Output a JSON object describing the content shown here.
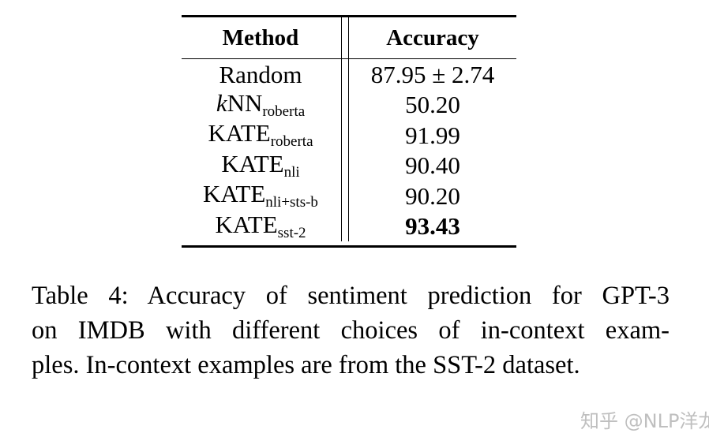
{
  "table": {
    "headers": {
      "method": "Method",
      "accuracy": "Accuracy"
    },
    "rows": [
      {
        "method": {
          "prefix": "",
          "italic": "",
          "base": "Random",
          "sub": ""
        },
        "accuracy": "87.95 ± 2.74",
        "bold": false
      },
      {
        "method": {
          "prefix": "",
          "italic": "k",
          "base": "NN",
          "sub": "roberta"
        },
        "accuracy": "50.20",
        "bold": false
      },
      {
        "method": {
          "prefix": "",
          "italic": "",
          "base": "KATE",
          "sub": "roberta"
        },
        "accuracy": "91.99",
        "bold": false
      },
      {
        "method": {
          "prefix": "",
          "italic": "",
          "base": "KATE",
          "sub": "nli"
        },
        "accuracy": "90.40",
        "bold": false
      },
      {
        "method": {
          "prefix": "",
          "italic": "",
          "base": "KATE",
          "sub": "nli+sts-b"
        },
        "accuracy": "90.20",
        "bold": false
      },
      {
        "method": {
          "prefix": "",
          "italic": "",
          "base": "KATE",
          "sub": "sst-2"
        },
        "accuracy": "93.43",
        "bold": true
      }
    ]
  },
  "caption": {
    "lines": [
      "Table 4: Accuracy of sentiment prediction for GPT-3",
      "on IMDB with different choices of in-context exam-",
      "ples. In-context examples are from the SST-2 dataset."
    ]
  },
  "watermark": "知乎 @NLP洋龙"
}
